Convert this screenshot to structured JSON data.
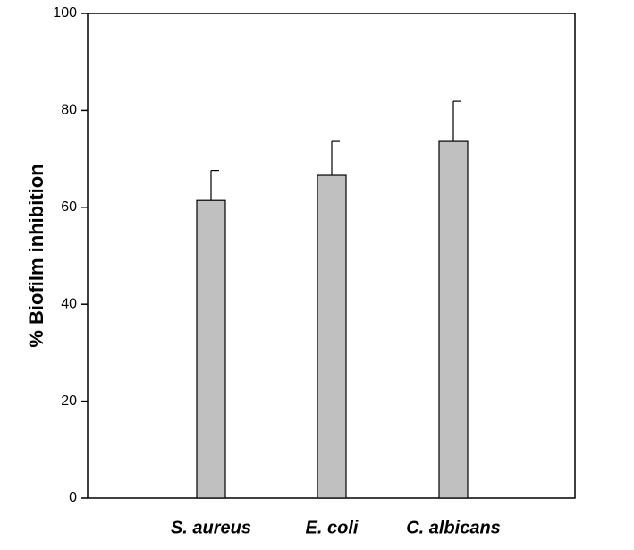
{
  "chart_data": {
    "type": "bar",
    "y_label": "% Biofilm inhibition",
    "categories": [
      "S. aureus",
      "E. coli",
      "C. albicans"
    ],
    "values": [
      61.4,
      66.6,
      73.6
    ],
    "errors": [
      6.2,
      7.0,
      8.3
    ],
    "color": "#c0c0c0",
    "ylim": [
      0,
      100
    ],
    "yticks": [
      0,
      20,
      40,
      60,
      80,
      100
    ]
  }
}
